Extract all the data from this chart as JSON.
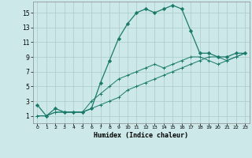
{
  "xlabel": "Humidex (Indice chaleur)",
  "background_color": "#cce8e8",
  "grid_color": "#aacccc",
  "line_color": "#1a7a6a",
  "xlim": [
    -0.5,
    23.5
  ],
  "ylim": [
    0,
    16.5
  ],
  "xticks": [
    0,
    1,
    2,
    3,
    4,
    5,
    6,
    7,
    8,
    9,
    10,
    11,
    12,
    13,
    14,
    15,
    16,
    17,
    18,
    19,
    20,
    21,
    22,
    23
  ],
  "yticks": [
    1,
    3,
    5,
    7,
    9,
    11,
    13,
    15
  ],
  "line1_x": [
    0,
    1,
    2,
    3,
    4,
    5,
    6,
    7,
    8,
    9,
    10,
    11,
    12,
    13,
    14,
    15,
    16,
    17,
    18,
    19,
    20,
    21,
    22,
    23
  ],
  "line1_y": [
    2.5,
    1.0,
    2.0,
    1.5,
    1.5,
    1.5,
    2.0,
    5.5,
    8.5,
    11.5,
    13.5,
    15.0,
    15.5,
    15.0,
    15.5,
    16.0,
    15.5,
    12.5,
    9.5,
    9.5,
    9.0,
    9.0,
    9.5,
    9.5
  ],
  "line2_x": [
    0,
    1,
    2,
    3,
    4,
    5,
    6,
    7,
    8,
    9,
    10,
    11,
    12,
    13,
    14,
    15,
    16,
    17,
    18,
    19,
    20,
    21,
    22,
    23
  ],
  "line2_y": [
    1.0,
    1.0,
    1.5,
    1.5,
    1.5,
    1.5,
    2.0,
    2.5,
    3.0,
    3.5,
    4.5,
    5.0,
    5.5,
    6.0,
    6.5,
    7.0,
    7.5,
    8.0,
    8.5,
    9.0,
    9.0,
    8.5,
    9.0,
    9.5
  ],
  "line3_x": [
    0,
    1,
    2,
    3,
    4,
    5,
    6,
    7,
    8,
    9,
    10,
    11,
    12,
    13,
    14,
    15,
    16,
    17,
    18,
    19,
    20,
    21,
    22,
    23
  ],
  "line3_y": [
    1.0,
    1.0,
    1.5,
    1.5,
    1.5,
    1.5,
    3.0,
    4.0,
    5.0,
    6.0,
    6.5,
    7.0,
    7.5,
    8.0,
    7.5,
    8.0,
    8.5,
    9.0,
    9.0,
    8.5,
    8.0,
    8.5,
    9.0,
    9.5
  ]
}
